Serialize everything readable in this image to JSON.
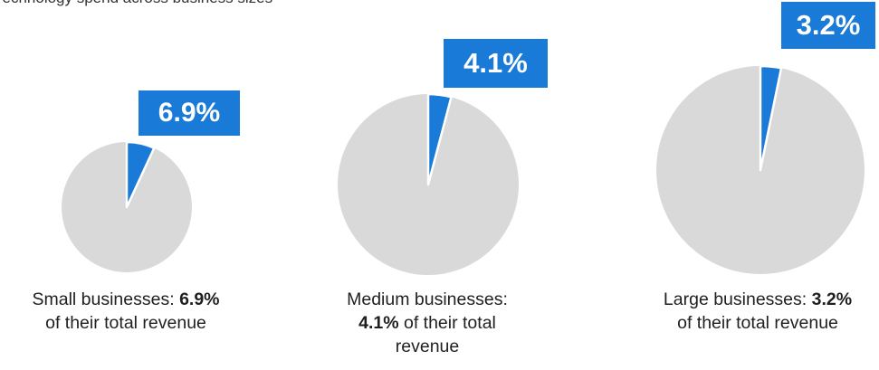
{
  "colors": {
    "highlight": "#1a7ad8",
    "remainder": "#d9d9d9",
    "slice_border": "#ffffff"
  },
  "header": {
    "caption_fragment": "Technology spend across business sizes"
  },
  "chart_data": [
    {
      "type": "pie",
      "category": "Small businesses",
      "values": [
        6.9,
        93.1
      ],
      "highlight_label": "6.9%",
      "caption": {
        "prefix": "Small businesses: ",
        "value_text": "6.9%",
        "suffix": "of their total revenue"
      }
    },
    {
      "type": "pie",
      "category": "Medium businesses",
      "values": [
        4.1,
        95.9
      ],
      "highlight_label": "4.1%",
      "caption": {
        "prefix": "Medium businesses:",
        "value_text": "4.1%",
        "suffix": " of their total",
        "suffix2": "revenue"
      }
    },
    {
      "type": "pie",
      "category": "Large businesses",
      "values": [
        3.2,
        96.8
      ],
      "highlight_label": "3.2%",
      "caption": {
        "prefix": "Large businesses: ",
        "value_text": "3.2%",
        "suffix": "of their total revenue"
      }
    }
  ]
}
